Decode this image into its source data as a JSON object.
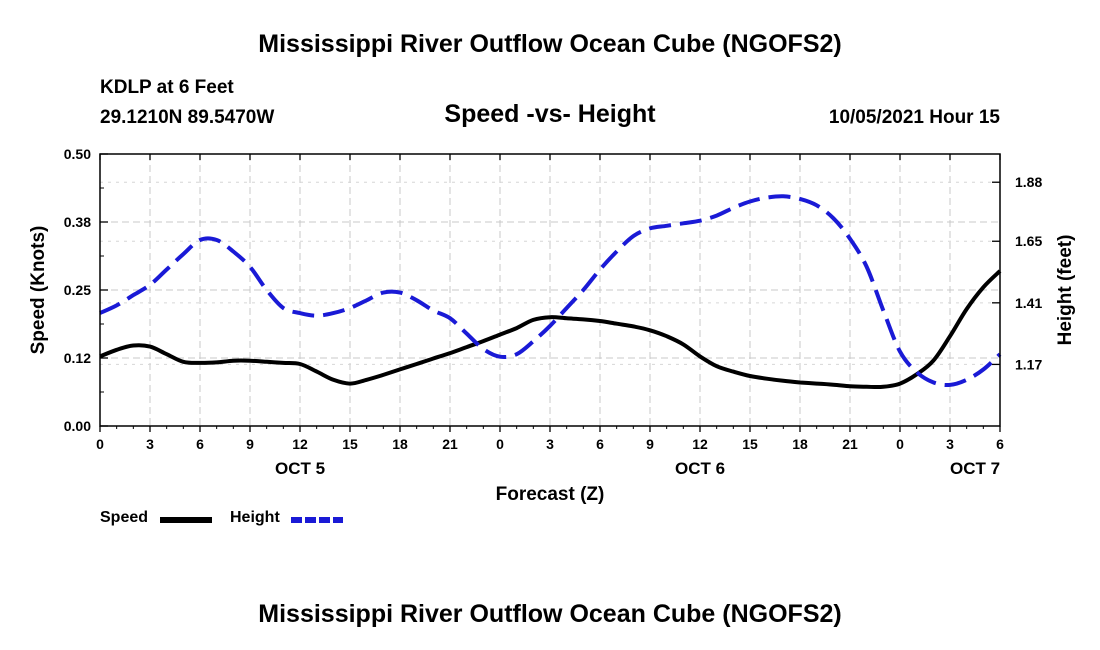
{
  "header": {
    "title": "Mississippi River Outflow Ocean Cube (NGOFS2)",
    "station": "KDLP at 6 Feet",
    "coordinates": "29.1210N  89.5470W",
    "subtitle": "Speed -vs- Height",
    "datetime": "10/05/2021 Hour 15"
  },
  "footer": {
    "title": "Mississippi River Outflow Ocean Cube (NGOFS2)"
  },
  "legend": {
    "speed_label": "Speed",
    "height_label": "Height"
  },
  "chart_data": {
    "type": "line",
    "xlabel": "Forecast (Z)",
    "x_unit": "hours since 10/05/2021 00Z",
    "xlim": [
      0,
      54
    ],
    "x_ticks": [
      0,
      3,
      6,
      9,
      12,
      15,
      18,
      21,
      24,
      27,
      30,
      33,
      36,
      39,
      42,
      45,
      48,
      51,
      54
    ],
    "x_tick_labels": [
      "0",
      "3",
      "6",
      "9",
      "12",
      "15",
      "18",
      "21",
      "0",
      "3",
      "6",
      "9",
      "12",
      "15",
      "18",
      "21",
      "0",
      "3",
      "6"
    ],
    "date_labels": [
      {
        "label": "OCT 5",
        "x": 12
      },
      {
        "label": "OCT 6",
        "x": 36
      },
      {
        "label": "OCT 7",
        "x": 52.5
      }
    ],
    "grid": true,
    "series": [
      {
        "name": "Speed",
        "axis": "left",
        "ylabel": "Speed (Knots)",
        "ylim": [
          0,
          0.5
        ],
        "y_ticks": [
          0,
          0.125,
          0.25,
          0.375,
          0.5
        ],
        "y_tick_labels": [
          "0.00",
          "0.12",
          "0.25",
          "0.38",
          "0.50"
        ],
        "color": "#000000",
        "style": "solid",
        "x": [
          0,
          1,
          2,
          3,
          4,
          5,
          6,
          7,
          8,
          9,
          10,
          11,
          12,
          13,
          14,
          15,
          16,
          17,
          18,
          19,
          20,
          21,
          22,
          23,
          24,
          25,
          26,
          27,
          28,
          29,
          30,
          31,
          32,
          33,
          34,
          35,
          36,
          37,
          38,
          39,
          40,
          41,
          42,
          43,
          44,
          45,
          46,
          47,
          48,
          49,
          50,
          51,
          52,
          53,
          54
        ],
        "values": [
          0.128,
          0.14,
          0.148,
          0.146,
          0.132,
          0.118,
          0.116,
          0.117,
          0.12,
          0.12,
          0.118,
          0.116,
          0.114,
          0.1,
          0.085,
          0.078,
          0.085,
          0.094,
          0.104,
          0.114,
          0.124,
          0.134,
          0.145,
          0.156,
          0.168,
          0.18,
          0.195,
          0.2,
          0.198,
          0.196,
          0.193,
          0.188,
          0.183,
          0.176,
          0.165,
          0.15,
          0.128,
          0.11,
          0.1,
          0.092,
          0.087,
          0.083,
          0.08,
          0.078,
          0.076,
          0.073,
          0.072,
          0.072,
          0.078,
          0.095,
          0.12,
          0.165,
          0.215,
          0.255,
          0.285
        ]
      },
      {
        "name": "Height",
        "axis": "right",
        "ylabel": "Height (feet)",
        "ylim": [
          0.93,
          1.99
        ],
        "y_ticks": [
          1.17,
          1.41,
          1.65,
          1.88
        ],
        "y_tick_labels": [
          "1.17",
          "1.41",
          "1.65",
          "1.88"
        ],
        "color": "#1a1ad6",
        "style": "dashed",
        "x": [
          0,
          1,
          2,
          3,
          4,
          5,
          6,
          7,
          8,
          9,
          10,
          11,
          12,
          13,
          14,
          15,
          16,
          17,
          18,
          19,
          20,
          21,
          22,
          23,
          24,
          25,
          26,
          27,
          28,
          29,
          30,
          31,
          32,
          33,
          34,
          35,
          36,
          37,
          38,
          39,
          40,
          41,
          42,
          43,
          44,
          45,
          46,
          47,
          48,
          49,
          50,
          51,
          52,
          53,
          54
        ],
        "values": [
          1.37,
          1.4,
          1.44,
          1.48,
          1.54,
          1.6,
          1.655,
          1.655,
          1.61,
          1.55,
          1.46,
          1.39,
          1.37,
          1.36,
          1.37,
          1.39,
          1.42,
          1.45,
          1.45,
          1.42,
          1.38,
          1.35,
          1.29,
          1.23,
          1.2,
          1.21,
          1.26,
          1.32,
          1.39,
          1.46,
          1.54,
          1.61,
          1.67,
          1.7,
          1.71,
          1.72,
          1.73,
          1.75,
          1.78,
          1.805,
          1.82,
          1.825,
          1.815,
          1.79,
          1.74,
          1.66,
          1.55,
          1.38,
          1.22,
          1.14,
          1.1,
          1.09,
          1.11,
          1.15,
          1.21
        ]
      }
    ]
  }
}
